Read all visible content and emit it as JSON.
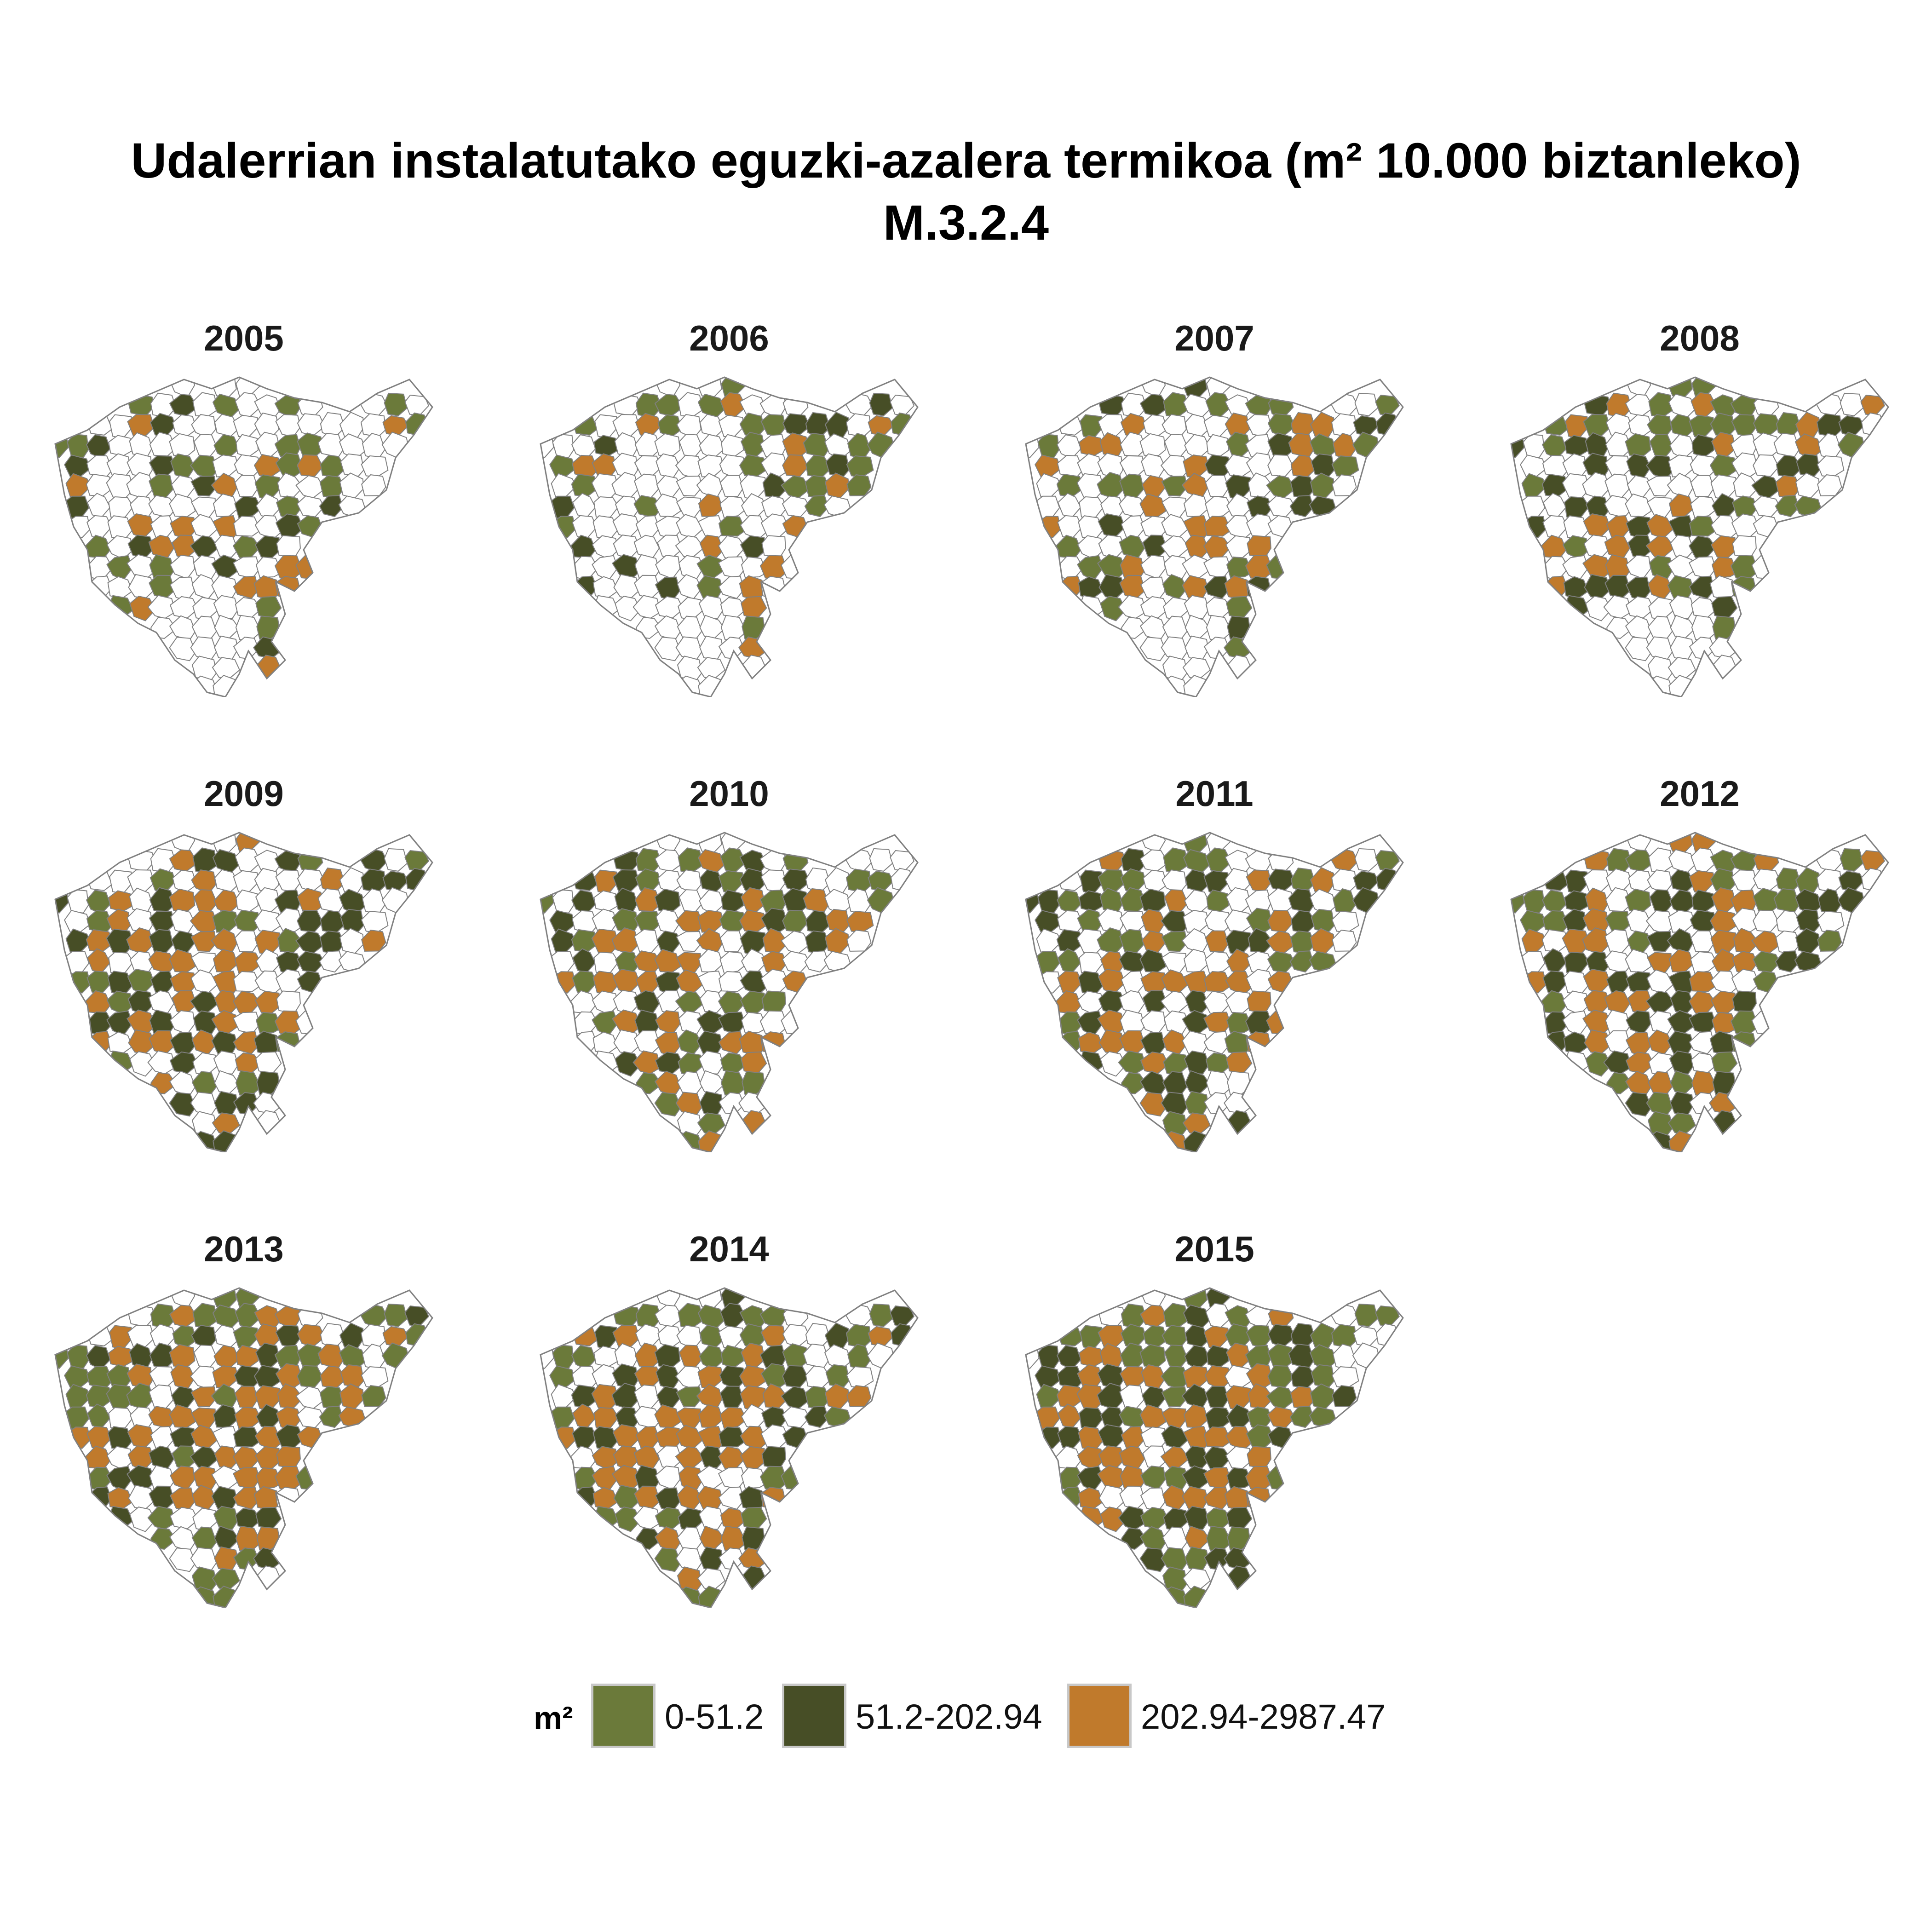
{
  "title": "Udalerrian instalatutako eguzki-azalera termikoa (m² 10.000 biztanleko)",
  "subtitle": "M.3.2.4",
  "colors": {
    "low": "#6b7a3a",
    "mid": "#474e26",
    "high": "#c07a2c",
    "none": "#ffffff",
    "border": "#808080"
  },
  "legend": {
    "title": "m²",
    "items": [
      {
        "label": "0-51.2",
        "color": "#6b7a3a"
      },
      {
        "label": "51.2-202.94",
        "color": "#474e26"
      },
      {
        "label": "202.94-2987.47",
        "color": "#c07a2c"
      }
    ]
  },
  "panels": [
    {
      "year": "2005"
    },
    {
      "year": "2006"
    },
    {
      "year": "2007"
    },
    {
      "year": "2008"
    },
    {
      "year": "2009"
    },
    {
      "year": "2010"
    },
    {
      "year": "2011"
    },
    {
      "year": "2012"
    },
    {
      "year": "2013"
    },
    {
      "year": "2014"
    },
    {
      "year": "2015"
    }
  ]
}
